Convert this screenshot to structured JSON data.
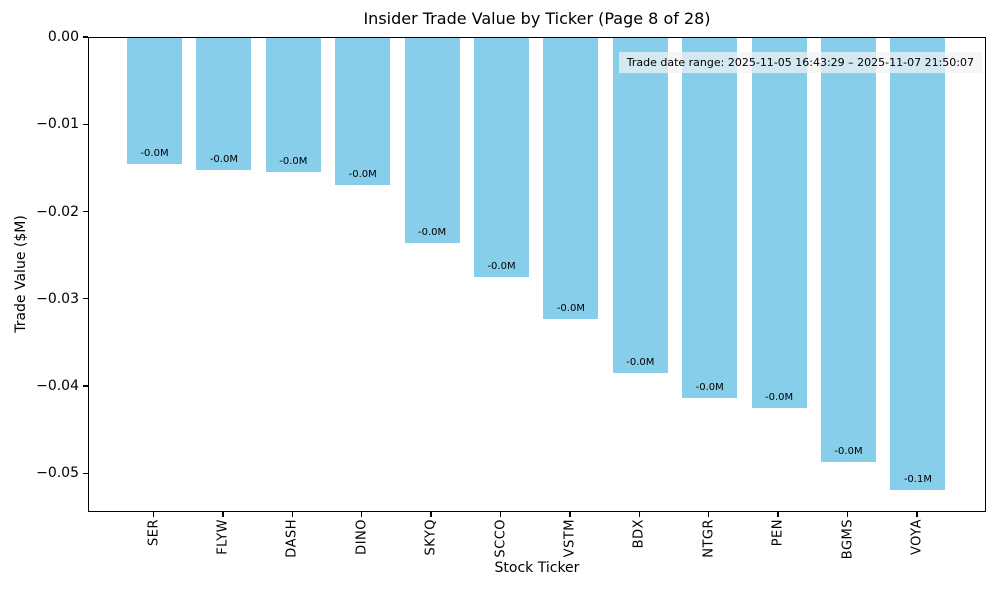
{
  "chart_data": {
    "type": "bar",
    "title": "Insider Trade Value by Ticker (Page 8 of 28)",
    "xlabel": "Stock Ticker",
    "ylabel": "Trade Value ($M)",
    "categories": [
      "SER",
      "FLYW",
      "DASH",
      "DINO",
      "SKYQ",
      "SCCO",
      "VSTM",
      "BDX",
      "NTGR",
      "PEN",
      "BGMS",
      "VOYA"
    ],
    "values": [
      -0.0144,
      -0.0151,
      -0.0153,
      -0.0168,
      -0.0235,
      -0.0274,
      -0.0322,
      -0.0384,
      -0.0413,
      -0.0424,
      -0.0486,
      -0.0518
    ],
    "bar_labels": [
      "-0.0M",
      "-0.0M",
      "-0.0M",
      "-0.0M",
      "-0.0M",
      "-0.0M",
      "-0.0M",
      "-0.0M",
      "-0.0M",
      "-0.0M",
      "-0.0M",
      "-0.1M"
    ],
    "annotation": "Trade date range: 2025-11-05 16:43:29 – 2025-11-07 21:50:07",
    "y_ticks": [
      {
        "label": "0.00",
        "value": 0
      },
      {
        "label": "−0.01",
        "value": -0.01
      },
      {
        "label": "−0.02",
        "value": -0.02
      },
      {
        "label": "−0.03",
        "value": -0.03
      },
      {
        "label": "−0.04",
        "value": -0.04
      },
      {
        "label": "−0.05",
        "value": -0.05
      }
    ],
    "ylim": [
      -0.0542,
      0
    ],
    "bar_color": "#87CEEB",
    "grid": false,
    "legend_position": "none"
  }
}
